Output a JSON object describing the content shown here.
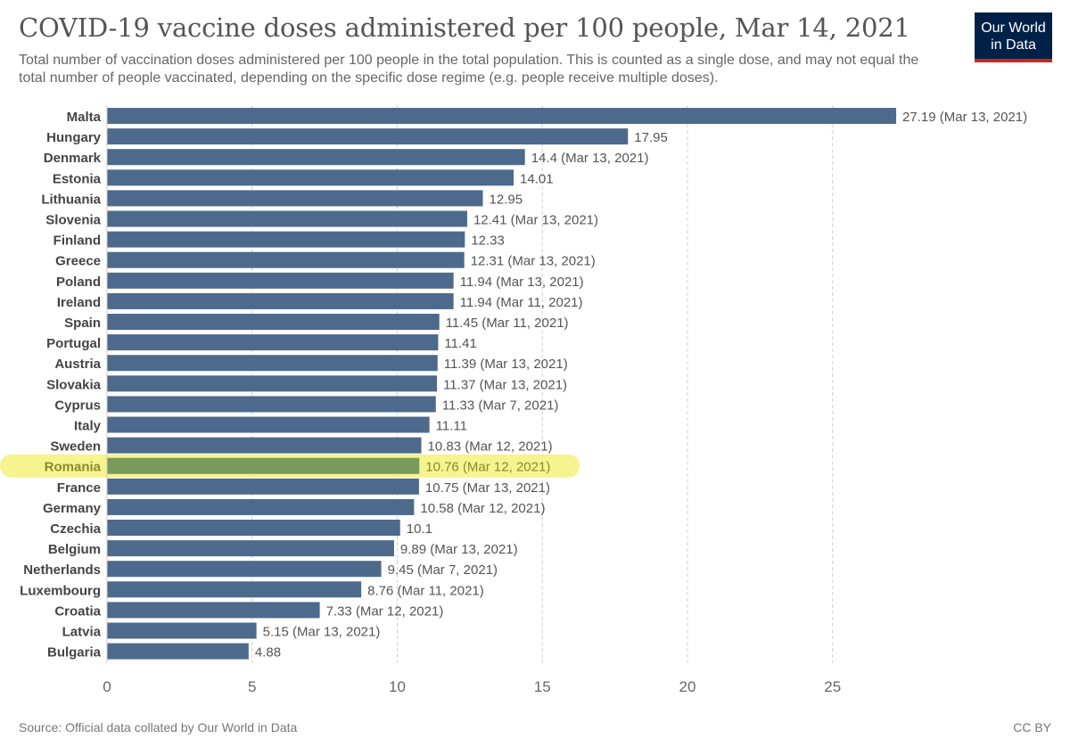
{
  "header": {
    "title": "COVID-19 vaccine doses administered per 100 people, Mar 14, 2021",
    "subtitle": "Total number of vaccination doses administered per 100 people in the total population. This is counted as a single dose, and may not equal the total number of people vaccinated, depending on the specific dose regime (e.g. people receive multiple doses).",
    "logo_line1": "Our World",
    "logo_line2": "in Data"
  },
  "footer": {
    "source": "Source: Official data collated by Our World in Data",
    "license": "CC BY"
  },
  "colors": {
    "bar": "#4d6a8c",
    "highlight_bar": "#7a9a5c",
    "highlight_glow": "#f3f27a",
    "grid": "#d0d0d0",
    "text": "#555555"
  },
  "chart_data": {
    "type": "bar",
    "orientation": "horizontal",
    "xlim": [
      0,
      30
    ],
    "xticks": [
      0,
      5,
      10,
      15,
      20,
      25
    ],
    "grid": true,
    "highlighted": "Romania",
    "categories": [
      "Malta",
      "Hungary",
      "Denmark",
      "Estonia",
      "Lithuania",
      "Slovenia",
      "Finland",
      "Greece",
      "Poland",
      "Ireland",
      "Spain",
      "Portugal",
      "Austria",
      "Slovakia",
      "Cyprus",
      "Italy",
      "Sweden",
      "Romania",
      "France",
      "Germany",
      "Czechia",
      "Belgium",
      "Netherlands",
      "Luxembourg",
      "Croatia",
      "Latvia",
      "Bulgaria"
    ],
    "values": [
      27.19,
      17.95,
      14.4,
      14.01,
      12.95,
      12.41,
      12.33,
      12.31,
      11.94,
      11.94,
      11.45,
      11.41,
      11.39,
      11.37,
      11.33,
      11.11,
      10.83,
      10.76,
      10.75,
      10.58,
      10.1,
      9.89,
      9.45,
      8.76,
      7.33,
      5.15,
      4.88
    ],
    "dates": [
      "Mar 13, 2021",
      "",
      "Mar 13, 2021",
      "",
      "",
      "Mar 13, 2021",
      "",
      "Mar 13, 2021",
      "Mar 13, 2021",
      "Mar 11, 2021",
      "Mar 11, 2021",
      "",
      "Mar 13, 2021",
      "Mar 13, 2021",
      "Mar 7, 2021",
      "",
      "Mar 12, 2021",
      "Mar 12, 2021",
      "Mar 13, 2021",
      "Mar 12, 2021",
      "",
      "Mar 13, 2021",
      "Mar 7, 2021",
      "Mar 11, 2021",
      "Mar 12, 2021",
      "Mar 13, 2021",
      ""
    ]
  }
}
